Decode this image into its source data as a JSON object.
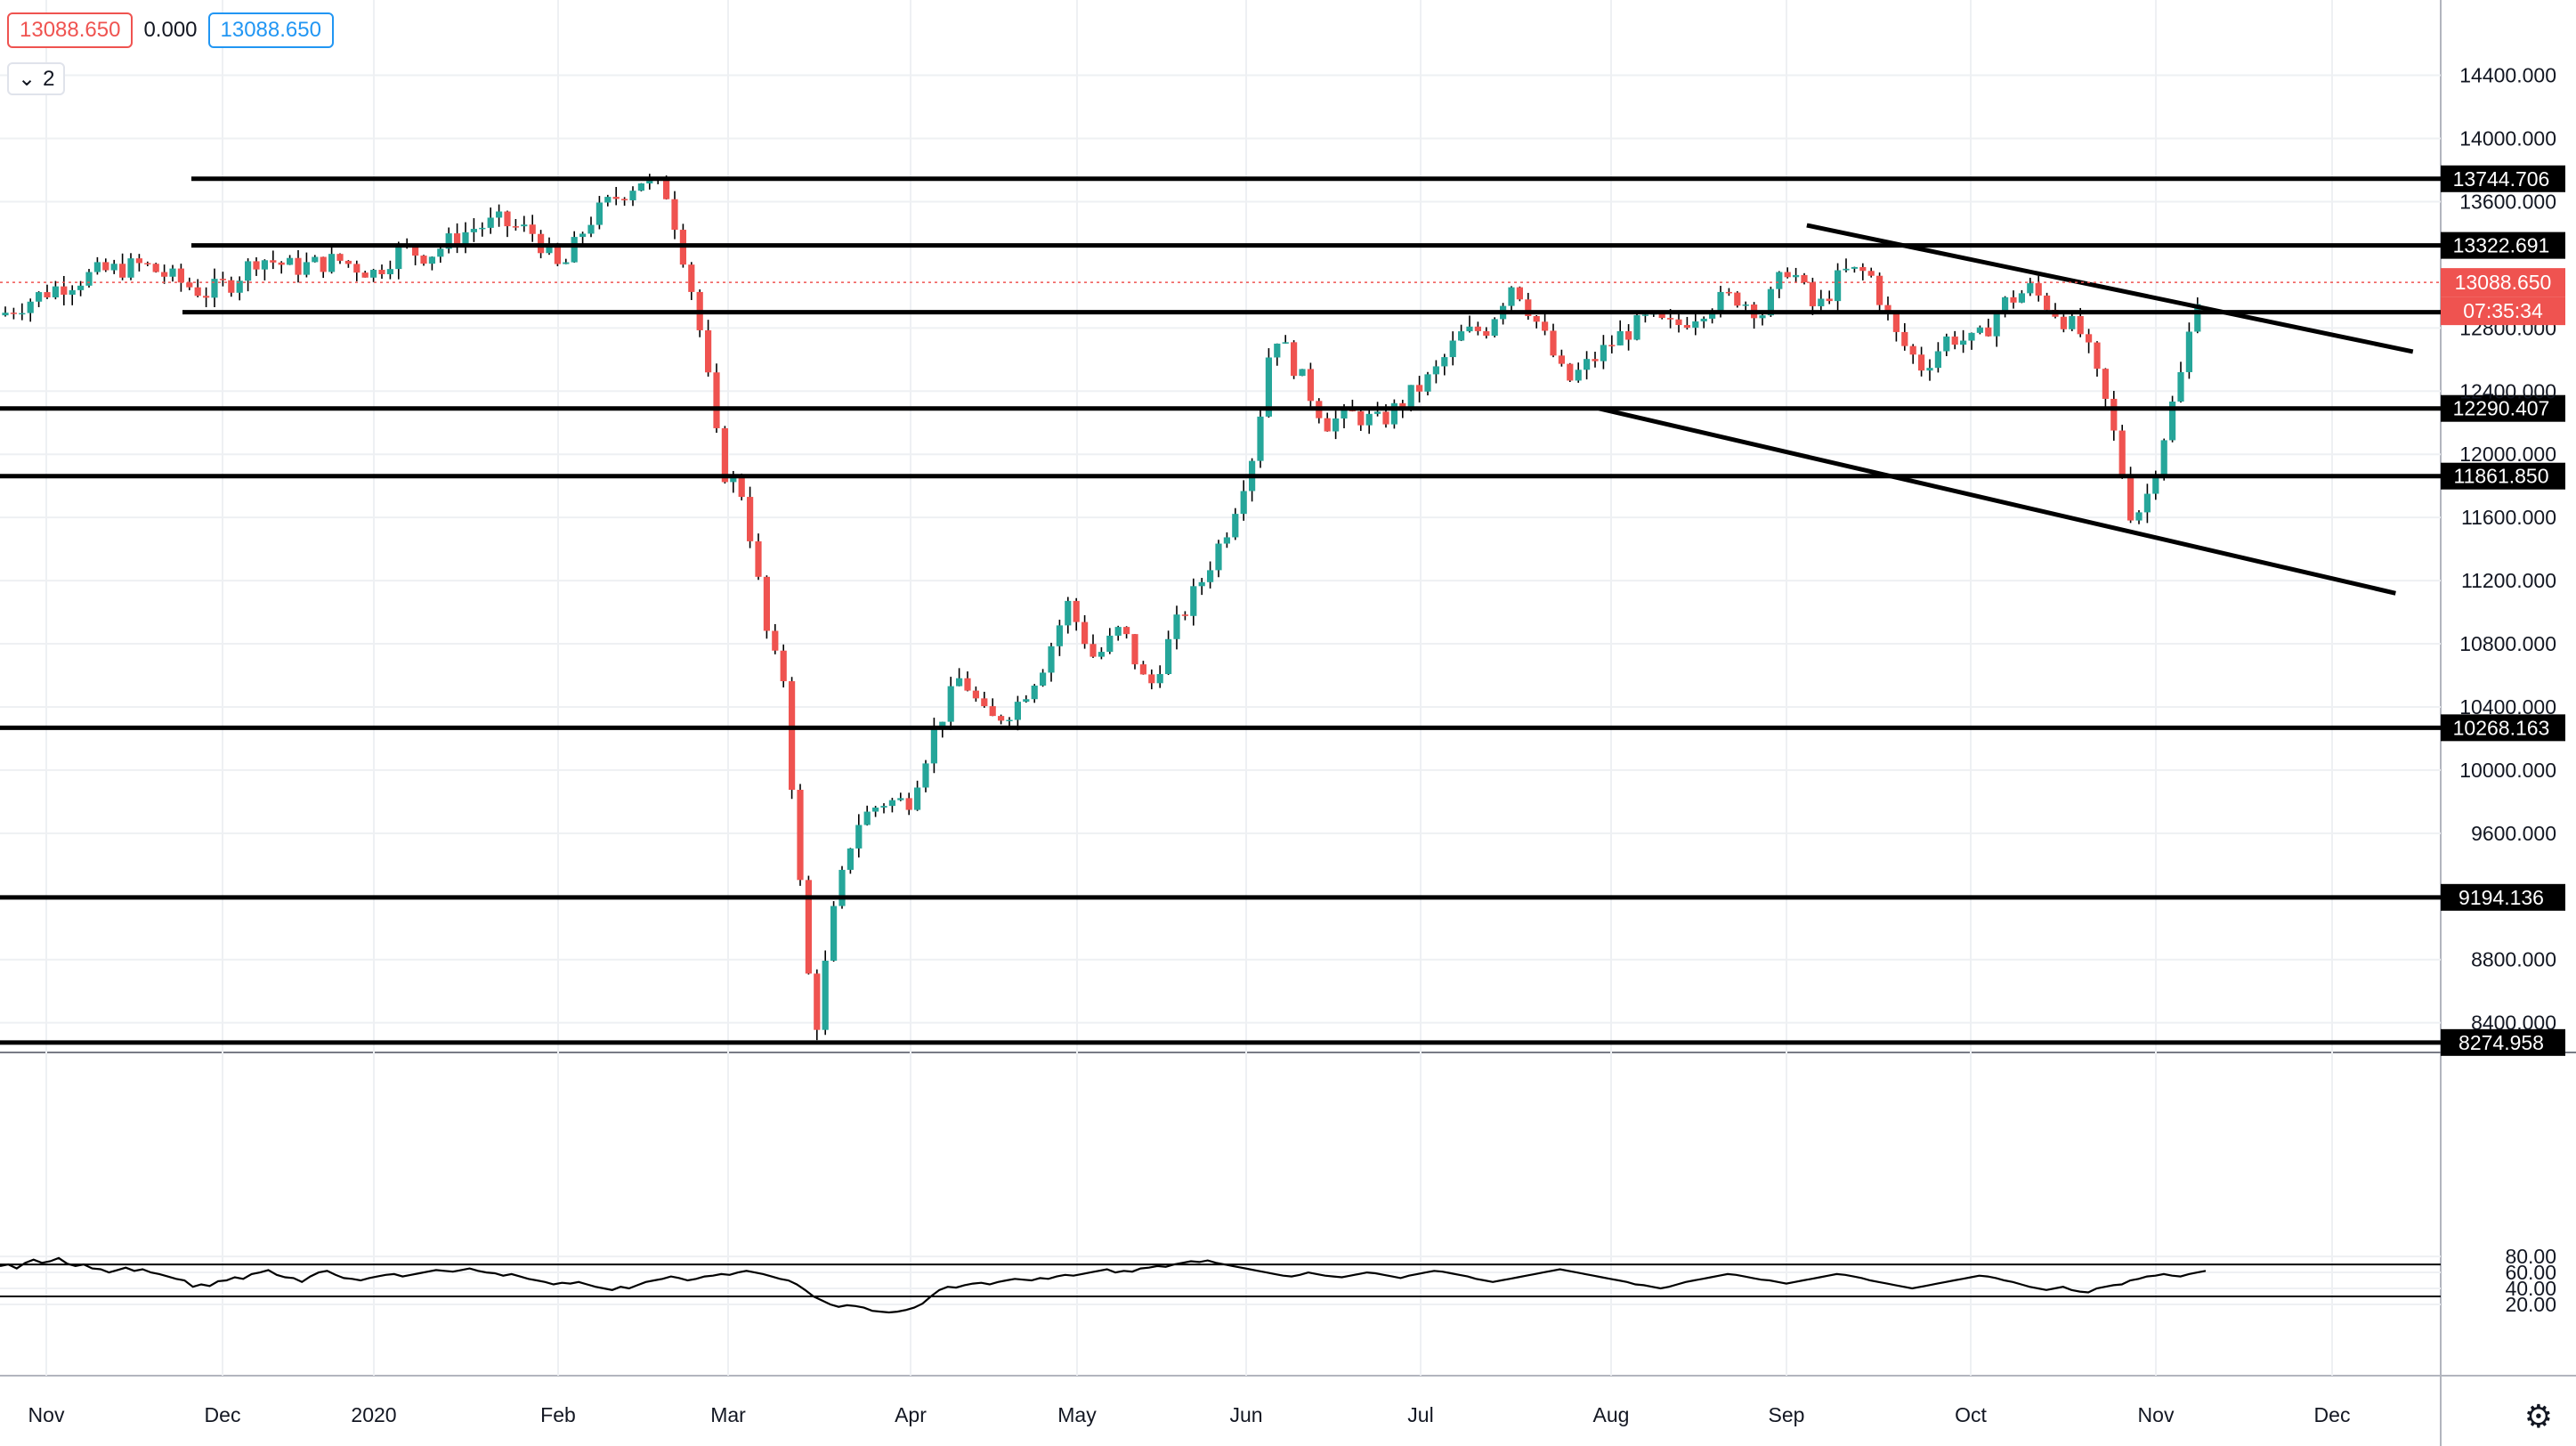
{
  "header": {
    "open_value": "13088.650",
    "change_value": "0.000",
    "close_value": "13088.650",
    "series_count": "2",
    "colors": {
      "open_border": "#ef5350",
      "close_border": "#2196f3"
    }
  },
  "price_tags": {
    "current_price": "13088.650",
    "countdown": "07:35:34"
  },
  "chart_data": [
    {
      "type": "candlestick",
      "title": "",
      "ylim": [
        8100,
        14600
      ],
      "y_ticks": [
        "14400.000",
        "14000.000",
        "13600.000",
        "12800.000",
        "12400.000",
        "12000.000",
        "11600.000",
        "11200.000",
        "10800.000",
        "10400.000",
        "10000.000",
        "9600.000",
        "8800.000",
        "8400.000"
      ],
      "x_ticks": [
        "Nov",
        "Dec",
        "2020",
        "Feb",
        "Mar",
        "Apr",
        "May",
        "Jun",
        "Jul",
        "Aug",
        "Sep",
        "Oct",
        "Nov",
        "Dec"
      ],
      "horizontal_levels": [
        {
          "value": 13744.706,
          "label": "13744.706"
        },
        {
          "value": 13322.691,
          "label": "13322.691"
        },
        {
          "value": 12900,
          "label": ""
        },
        {
          "value": 12290.407,
          "label": "12290.407"
        },
        {
          "value": 11861.85,
          "label": "11861.850"
        },
        {
          "value": 10268.163,
          "label": "10268.163"
        },
        {
          "value": 9194.136,
          "label": "9194.136"
        },
        {
          "value": 8274.958,
          "label": "8274.958"
        }
      ],
      "trendlines": [
        {
          "from": [
            "2020-09-01",
            13450
          ],
          "to": [
            "2020-12-15",
            12650
          ]
        },
        {
          "from": [
            "2020-07-27",
            12290
          ],
          "to": [
            "2020-12-12",
            11120
          ]
        }
      ],
      "current_price": 13088.65,
      "colors": {
        "up": "#26a69a",
        "down": "#ef5350",
        "level": "#000000"
      }
    },
    {
      "type": "line",
      "title": "",
      "ylim": [
        5,
        87
      ],
      "y_ticks": [
        "80.00",
        "60.00",
        "40.00",
        "20.00"
      ],
      "bands": [
        70,
        30
      ],
      "series": [
        {
          "values": [
            68,
            70,
            65,
            72,
            76,
            72,
            74,
            78,
            71,
            68,
            70,
            65,
            64,
            60,
            63,
            66,
            62,
            64,
            60,
            58,
            55,
            52,
            50,
            42,
            45,
            43,
            49,
            50,
            54,
            52,
            58,
            60,
            63,
            57,
            54,
            53,
            48,
            55,
            60,
            62,
            57,
            53,
            52,
            50,
            53,
            55,
            57,
            58,
            55,
            57,
            59,
            61,
            63,
            62,
            61,
            63,
            65,
            62,
            60,
            59,
            56,
            58,
            55,
            52,
            50,
            48,
            45,
            47,
            46,
            48,
            45,
            42,
            40,
            38,
            42,
            40,
            44,
            48,
            50,
            52,
            55,
            53,
            50,
            52,
            55,
            56,
            58,
            57,
            60,
            62,
            60,
            58,
            55,
            52,
            50,
            45,
            38,
            30,
            25,
            20,
            17,
            19,
            18,
            16,
            12,
            11,
            10,
            11,
            13,
            16,
            21,
            30,
            38,
            42,
            41,
            44,
            46,
            47,
            45,
            48,
            50,
            52,
            51,
            50,
            53,
            52,
            55,
            57,
            56,
            58,
            60,
            62,
            64,
            60,
            62,
            61,
            65,
            66,
            68,
            67,
            70,
            72,
            74,
            73,
            75,
            72,
            70,
            68,
            66,
            64,
            62,
            60,
            58,
            56,
            55,
            57,
            60,
            58,
            56,
            55,
            54,
            56,
            58,
            60,
            59,
            57,
            55,
            53,
            56,
            58,
            60,
            62,
            61,
            59,
            57,
            55,
            52,
            50,
            48,
            50,
            52,
            54,
            56,
            58,
            60,
            62,
            64,
            62,
            60,
            58,
            56,
            54,
            52,
            50,
            48,
            45,
            44,
            42,
            40,
            42,
            45,
            48,
            50,
            52,
            54,
            56,
            58,
            57,
            55,
            53,
            51,
            50,
            48,
            46,
            48,
            50,
            52,
            54,
            56,
            58,
            57,
            55,
            53,
            50,
            48,
            46,
            44,
            42,
            40,
            42,
            44,
            46,
            48,
            50,
            52,
            54,
            56,
            55,
            53,
            50,
            48,
            45,
            42,
            40,
            38,
            40,
            42,
            38,
            36,
            35,
            40,
            42,
            44,
            45,
            50,
            52,
            55,
            56,
            58,
            56,
            55,
            58,
            60,
            62
          ]
        }
      ]
    }
  ]
}
